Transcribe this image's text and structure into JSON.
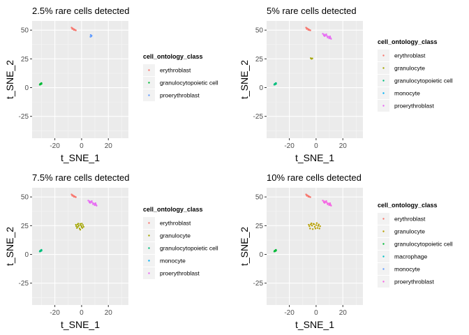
{
  "chart_data": [
    {
      "type": "scatter",
      "title": "2.5% rare cells detected",
      "xlabel": "t_SNE_1",
      "ylabel": "t_SNE_2",
      "xlim": [
        -37,
        35
      ],
      "ylim": [
        -44,
        58
      ],
      "xticks": [
        -20,
        0,
        20
      ],
      "yticks": [
        -25,
        0,
        25,
        50
      ],
      "grid": true,
      "legend": {
        "title": "cell_ontology_class",
        "position": "right"
      },
      "series": [
        {
          "name": "erythroblast",
          "color": "#F8766D",
          "points": [
            [
              -7.5,
              52.2
            ],
            [
              -6.8,
              51.6
            ],
            [
              -6.0,
              51.0
            ],
            [
              -5.4,
              50.6
            ],
            [
              -4.8,
              50.0
            ],
            [
              -4.3,
              49.8
            ],
            [
              -7.0,
              51.0
            ],
            [
              -5.8,
              50.2
            ]
          ]
        },
        {
          "name": "granulocytopoietic cell",
          "color": "#00BA38",
          "points": [
            [
              -31.0,
              3.2
            ],
            [
              -30.3,
              3.8
            ],
            [
              -30.6,
              2.7
            ],
            [
              -29.9,
              3.3
            ],
            [
              -31.3,
              2.5
            ],
            [
              -30.0,
              4.0
            ]
          ]
        },
        {
          "name": "proerythroblast",
          "color": "#619CFF",
          "points": [
            [
              6.8,
              45.8
            ],
            [
              7.2,
              44.6
            ],
            [
              6.6,
              44.2
            ],
            [
              7.5,
              45.2
            ]
          ]
        }
      ]
    },
    {
      "type": "scatter",
      "title": "5% rare cells detected",
      "xlabel": "t_SNE_1",
      "ylabel": "t_SNE_2",
      "xlim": [
        -37,
        35
      ],
      "ylim": [
        -44,
        58
      ],
      "xticks": [
        -20,
        0,
        20
      ],
      "yticks": [
        -25,
        0,
        25,
        50
      ],
      "grid": true,
      "legend": {
        "title": "cell_ontology_class",
        "position": "right"
      },
      "series": [
        {
          "name": "erythroblast",
          "color": "#F8766D",
          "points": [
            [
              -7.5,
              52.2
            ],
            [
              -6.8,
              51.6
            ],
            [
              -6.0,
              51.0
            ],
            [
              -5.4,
              50.6
            ],
            [
              -4.8,
              50.0
            ],
            [
              -4.3,
              49.8
            ],
            [
              -7.0,
              51.0
            ],
            [
              -5.8,
              50.2
            ]
          ]
        },
        {
          "name": "granulocyte",
          "color": "#A3A500",
          "points": [
            [
              -4.0,
              25.6
            ],
            [
              -2.8,
              25.4
            ],
            [
              -3.4,
              25.0
            ]
          ]
        },
        {
          "name": "granulocytopoietic cell",
          "color": "#00BF7D",
          "points": [
            [
              -31.0,
              3.2
            ],
            [
              -30.3,
              3.8
            ],
            [
              -30.6,
              2.7
            ],
            [
              -29.9,
              3.3
            ],
            [
              -31.3,
              2.5
            ],
            [
              -30.0,
              4.0
            ]
          ]
        },
        {
          "name": "monocyte",
          "color": "#00B0F6",
          "points": []
        },
        {
          "name": "proerythroblast",
          "color": "#E76BF3",
          "points": [
            [
              5.0,
              46.8
            ],
            [
              6.0,
              46.2
            ],
            [
              7.0,
              45.6
            ],
            [
              8.0,
              45.0
            ],
            [
              9.0,
              44.4
            ],
            [
              10.0,
              43.8
            ],
            [
              10.8,
              43.2
            ],
            [
              11.2,
              42.4
            ],
            [
              6.4,
              44.8
            ],
            [
              8.6,
              43.6
            ],
            [
              9.8,
              42.8
            ],
            [
              7.6,
              46.4
            ],
            [
              5.8,
              45.4
            ],
            [
              10.4,
              44.6
            ]
          ]
        }
      ]
    },
    {
      "type": "scatter",
      "title": "7.5% rare cells detected",
      "xlabel": "t_SNE_1",
      "ylabel": "t_SNE_2",
      "xlim": [
        -37,
        35
      ],
      "ylim": [
        -44,
        58
      ],
      "xticks": [
        -20,
        0,
        20
      ],
      "yticks": [
        -25,
        0,
        25,
        50
      ],
      "grid": true,
      "legend": {
        "title": "cell_ontology_class",
        "position": "right"
      },
      "series": [
        {
          "name": "erythroblast",
          "color": "#F8766D",
          "points": [
            [
              -7.5,
              52.2
            ],
            [
              -6.8,
              51.6
            ],
            [
              -6.0,
              51.0
            ],
            [
              -5.4,
              50.6
            ],
            [
              -4.8,
              50.0
            ],
            [
              -4.3,
              49.8
            ],
            [
              -7.0,
              51.0
            ],
            [
              -5.8,
              50.2
            ]
          ]
        },
        {
          "name": "granulocyte",
          "color": "#A3A500",
          "points": [
            [
              -4.0,
              24.5
            ],
            [
              -3.0,
              26.0
            ],
            [
              -2.0,
              25.0
            ],
            [
              -1.0,
              26.5
            ],
            [
              0.0,
              24.0
            ],
            [
              1.0,
              25.5
            ],
            [
              -3.5,
              23.0
            ],
            [
              -1.5,
              22.5
            ],
            [
              0.5,
              23.0
            ],
            [
              -2.5,
              26.8
            ],
            [
              -0.5,
              25.2
            ],
            [
              1.5,
              24.0
            ],
            [
              -4.3,
              25.8
            ],
            [
              -1.0,
              21.5
            ],
            [
              0.2,
              26.8
            ],
            [
              -2.8,
              24.0
            ]
          ]
        },
        {
          "name": "granulocytopoietic cell",
          "color": "#00BF7D",
          "points": [
            [
              -31.0,
              3.2
            ],
            [
              -30.3,
              3.8
            ],
            [
              -30.6,
              2.7
            ],
            [
              -29.9,
              3.3
            ],
            [
              -31.3,
              2.5
            ],
            [
              -30.0,
              4.0
            ]
          ]
        },
        {
          "name": "monocyte",
          "color": "#00B0F6",
          "points": []
        },
        {
          "name": "proerythroblast",
          "color": "#E76BF3",
          "points": [
            [
              5.0,
              46.8
            ],
            [
              6.0,
              46.2
            ],
            [
              7.0,
              45.6
            ],
            [
              8.0,
              45.0
            ],
            [
              9.0,
              44.4
            ],
            [
              10.0,
              43.8
            ],
            [
              10.8,
              43.2
            ],
            [
              11.2,
              42.4
            ],
            [
              6.4,
              44.8
            ],
            [
              8.6,
              43.6
            ],
            [
              9.8,
              42.8
            ],
            [
              7.6,
              46.4
            ],
            [
              5.8,
              45.4
            ],
            [
              10.4,
              44.6
            ]
          ]
        }
      ]
    },
    {
      "type": "scatter",
      "title": "10% rare cells detected",
      "xlabel": "t_SNE_1",
      "ylabel": "t_SNE_2",
      "xlim": [
        -37,
        35
      ],
      "ylim": [
        -44,
        58
      ],
      "xticks": [
        -20,
        0,
        20
      ],
      "yticks": [
        -25,
        0,
        25,
        50
      ],
      "grid": true,
      "legend": {
        "title": "cell_ontology_class",
        "position": "right"
      },
      "series": [
        {
          "name": "erythroblast",
          "color": "#F8766D",
          "points": [
            [
              -7.5,
              52.2
            ],
            [
              -6.8,
              51.6
            ],
            [
              -6.0,
              51.0
            ],
            [
              -5.4,
              50.6
            ],
            [
              -4.8,
              50.0
            ],
            [
              -4.3,
              49.8
            ],
            [
              -7.0,
              51.0
            ],
            [
              -5.8,
              50.2
            ]
          ]
        },
        {
          "name": "granulocyte",
          "color": "#B79F00",
          "points": [
            [
              -5.0,
              24.5
            ],
            [
              -4.0,
              26.0
            ],
            [
              -3.0,
              25.0
            ],
            [
              -2.0,
              26.5
            ],
            [
              -1.0,
              24.0
            ],
            [
              0.0,
              25.5
            ],
            [
              1.0,
              23.0
            ],
            [
              2.0,
              26.0
            ],
            [
              3.0,
              24.5
            ],
            [
              -4.5,
              22.5
            ],
            [
              -2.5,
              22.0
            ],
            [
              -0.5,
              22.5
            ],
            [
              1.5,
              24.8
            ],
            [
              -3.5,
              27.0
            ],
            [
              0.5,
              27.2
            ],
            [
              2.5,
              22.5
            ],
            [
              -1.5,
              26.2
            ],
            [
              -5.5,
              25.8
            ]
          ]
        },
        {
          "name": "granulocytopoietic cell",
          "color": "#00BA38",
          "points": [
            [
              -31.0,
              3.2
            ],
            [
              -30.3,
              3.8
            ],
            [
              -30.6,
              2.7
            ],
            [
              -29.9,
              3.3
            ],
            [
              -31.3,
              2.5
            ],
            [
              -30.0,
              4.0
            ]
          ]
        },
        {
          "name": "macrophage",
          "color": "#00BFC4",
          "points": []
        },
        {
          "name": "monocyte",
          "color": "#619CFF",
          "points": []
        },
        {
          "name": "proerythroblast",
          "color": "#F564E3",
          "points": [
            [
              5.0,
              46.8
            ],
            [
              6.0,
              46.2
            ],
            [
              7.0,
              45.6
            ],
            [
              8.0,
              45.0
            ],
            [
              9.0,
              44.4
            ],
            [
              10.0,
              43.8
            ],
            [
              10.8,
              43.2
            ],
            [
              11.2,
              42.4
            ],
            [
              6.4,
              44.8
            ],
            [
              8.6,
              43.6
            ],
            [
              9.8,
              42.8
            ],
            [
              7.6,
              46.4
            ],
            [
              5.8,
              45.4
            ],
            [
              10.4,
              44.6
            ]
          ]
        }
      ]
    }
  ],
  "colors": {
    "panel_background": "#EBEBEB",
    "grid_major": "#FFFFFF",
    "grid_minor": "#F5F5F5",
    "legend_key_background": "#F2F2F2"
  }
}
